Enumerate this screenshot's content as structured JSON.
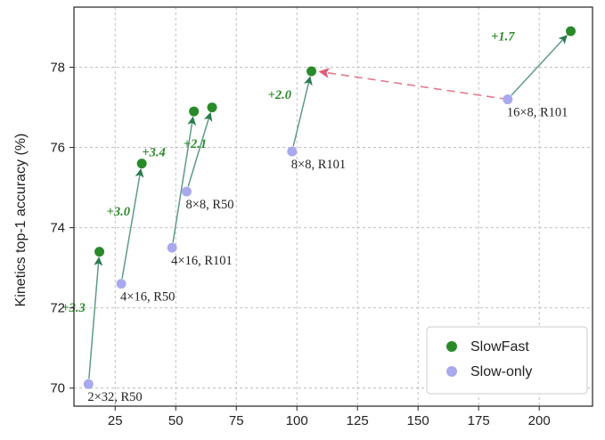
{
  "colors": {
    "slowfast": "#2a8a2a",
    "slow_only": "#a9a9ee",
    "arrow_line": "#5f9a8a",
    "dashed_arrow": "#e07a8e",
    "gain_text": "#2d8a2d",
    "grid": "#b8b8b8",
    "legend_border": "#cccccc"
  },
  "chart_data": {
    "type": "scatter",
    "title": "",
    "xlabel": "",
    "ylabel": "Kinetics top-1 accuracy (%)",
    "xlim": [
      8,
      222
    ],
    "ylim": [
      69.55,
      79.5
    ],
    "xticks": [
      25,
      50,
      75,
      100,
      125,
      150,
      175,
      200
    ],
    "yticks": [
      70,
      72,
      74,
      76,
      78
    ],
    "grid": true,
    "legend": {
      "position": "bottom-right",
      "entries": [
        {
          "name": "SlowFast",
          "marker": "circle",
          "color": "#2a8a2a"
        },
        {
          "name": "Slow-only",
          "marker": "circle",
          "color": "#a9a9ee"
        }
      ]
    },
    "series": [
      {
        "name": "Slow-only",
        "points": [
          {
            "x": 14,
            "y": 70.1,
            "label": "2×32, R50"
          },
          {
            "x": 27.5,
            "y": 72.6,
            "label": "4×16, R50"
          },
          {
            "x": 48.5,
            "y": 73.5,
            "label": "4×16, R101"
          },
          {
            "x": 54.5,
            "y": 74.9,
            "label": "8×8, R50"
          },
          {
            "x": 98,
            "y": 75.9,
            "label": "8×8, R101"
          },
          {
            "x": 187,
            "y": 77.2,
            "label": "16×8, R101"
          }
        ]
      },
      {
        "name": "SlowFast",
        "points": [
          {
            "x": 18.5,
            "y": 73.4
          },
          {
            "x": 36,
            "y": 75.6
          },
          {
            "x": 57.5,
            "y": 76.9
          },
          {
            "x": 65,
            "y": 77.0
          },
          {
            "x": 106,
            "y": 77.9
          },
          {
            "x": 213,
            "y": 78.9
          }
        ]
      }
    ],
    "arrows": [
      {
        "from": [
          14,
          70.1
        ],
        "to": [
          18.5,
          73.4
        ],
        "label": "+3.3"
      },
      {
        "from": [
          27.5,
          72.6
        ],
        "to": [
          36,
          75.6
        ],
        "label": "+3.0"
      },
      {
        "from": [
          48.5,
          73.5
        ],
        "to": [
          57.5,
          76.9
        ],
        "label": "+3.4"
      },
      {
        "from": [
          54.5,
          74.9
        ],
        "to": [
          65,
          77.0
        ],
        "label": "+2.1"
      },
      {
        "from": [
          98,
          75.9
        ],
        "to": [
          106,
          77.9
        ],
        "label": "+2.0"
      },
      {
        "from": [
          187,
          77.2
        ],
        "to": [
          213,
          78.9
        ],
        "label": "+1.7"
      }
    ],
    "dashed_arrow": {
      "from": [
        187,
        77.2
      ],
      "to": [
        106,
        77.9
      ]
    }
  }
}
